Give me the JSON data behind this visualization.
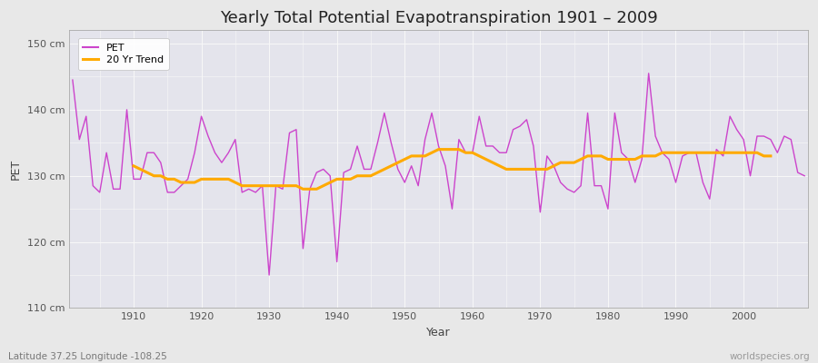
{
  "title": "Yearly Total Potential Evapotranspiration 1901 – 2009",
  "xlabel": "Year",
  "ylabel": "PET",
  "subtitle_left": "Latitude 37.25 Longitude -108.25",
  "subtitle_right": "worldspecies.org",
  "ylim": [
    110,
    152
  ],
  "yticks": [
    110,
    120,
    130,
    140,
    150
  ],
  "ytick_labels": [
    "110 cm",
    "120 cm",
    "130 cm",
    "140 cm",
    "150 cm"
  ],
  "xlim": [
    1900.5,
    2009.5
  ],
  "xticks": [
    1910,
    1920,
    1930,
    1940,
    1950,
    1960,
    1970,
    1980,
    1990,
    2000
  ],
  "pet_color": "#cc44cc",
  "trend_color": "#ffaa00",
  "fig_bg_color": "#e8e8e8",
  "plot_bg_color": "#e4e4ec",
  "grid_color": "#f8f8f8",
  "title_fontsize": 13,
  "axis_label_fontsize": 9,
  "tick_fontsize": 8,
  "legend_fontsize": 8,
  "years": [
    1901,
    1902,
    1903,
    1904,
    1905,
    1906,
    1907,
    1908,
    1909,
    1910,
    1911,
    1912,
    1913,
    1914,
    1915,
    1916,
    1917,
    1918,
    1919,
    1920,
    1921,
    1922,
    1923,
    1924,
    1925,
    1926,
    1927,
    1928,
    1929,
    1930,
    1931,
    1932,
    1933,
    1934,
    1935,
    1936,
    1937,
    1938,
    1939,
    1940,
    1941,
    1942,
    1943,
    1944,
    1945,
    1946,
    1947,
    1948,
    1949,
    1950,
    1951,
    1952,
    1953,
    1954,
    1955,
    1956,
    1957,
    1958,
    1959,
    1960,
    1961,
    1962,
    1963,
    1964,
    1965,
    1966,
    1967,
    1968,
    1969,
    1970,
    1971,
    1972,
    1973,
    1974,
    1975,
    1976,
    1977,
    1978,
    1979,
    1980,
    1981,
    1982,
    1983,
    1984,
    1985,
    1986,
    1987,
    1988,
    1989,
    1990,
    1991,
    1992,
    1993,
    1994,
    1995,
    1996,
    1997,
    1998,
    1999,
    2000,
    2001,
    2002,
    2003,
    2004,
    2005,
    2006,
    2007,
    2008,
    2009
  ],
  "pet_values": [
    144.5,
    135.5,
    139.0,
    128.5,
    127.5,
    133.5,
    128.0,
    128.0,
    140.0,
    129.5,
    129.5,
    133.5,
    133.5,
    132.0,
    127.5,
    127.5,
    128.5,
    129.5,
    133.5,
    139.0,
    136.0,
    133.5,
    132.0,
    133.5,
    135.5,
    127.5,
    128.0,
    127.5,
    128.5,
    115.0,
    128.5,
    128.0,
    136.5,
    137.0,
    119.0,
    128.0,
    130.5,
    131.0,
    130.0,
    117.0,
    130.5,
    131.0,
    134.5,
    131.0,
    131.0,
    135.0,
    139.5,
    135.0,
    131.0,
    129.0,
    131.5,
    128.5,
    135.5,
    139.5,
    134.5,
    131.5,
    125.0,
    135.5,
    133.5,
    133.5,
    139.0,
    134.5,
    134.5,
    133.5,
    133.5,
    137.0,
    137.5,
    138.5,
    134.5,
    124.5,
    133.0,
    131.5,
    129.0,
    128.0,
    127.5,
    128.5,
    139.5,
    128.5,
    128.5,
    125.0,
    139.5,
    133.5,
    132.5,
    129.0,
    132.5,
    145.5,
    136.0,
    133.5,
    132.5,
    129.0,
    133.0,
    133.5,
    133.5,
    129.0,
    126.5,
    134.0,
    133.0,
    139.0,
    137.0,
    135.5,
    130.0,
    136.0,
    136.0,
    135.5,
    133.5,
    136.0,
    135.5,
    130.5,
    130.0
  ],
  "trend_values": [
    null,
    null,
    null,
    null,
    null,
    null,
    null,
    null,
    null,
    131.5,
    131.0,
    130.5,
    130.0,
    130.0,
    129.5,
    129.5,
    129.0,
    129.0,
    129.0,
    129.5,
    129.5,
    129.5,
    129.5,
    129.5,
    129.0,
    128.5,
    128.5,
    128.5,
    128.5,
    128.5,
    128.5,
    128.5,
    128.5,
    128.5,
    128.0,
    128.0,
    128.0,
    128.5,
    129.0,
    129.5,
    129.5,
    129.5,
    130.0,
    130.0,
    130.0,
    130.5,
    131.0,
    131.5,
    132.0,
    132.5,
    133.0,
    133.0,
    133.0,
    133.5,
    134.0,
    134.0,
    134.0,
    134.0,
    133.5,
    133.5,
    133.0,
    132.5,
    132.0,
    131.5,
    131.0,
    131.0,
    131.0,
    131.0,
    131.0,
    131.0,
    131.0,
    131.5,
    132.0,
    132.0,
    132.0,
    132.5,
    133.0,
    133.0,
    133.0,
    132.5,
    132.5,
    132.5,
    132.5,
    132.5,
    133.0,
    133.0,
    133.0,
    133.5,
    133.5,
    133.5,
    133.5,
    133.5,
    133.5,
    133.5,
    133.5,
    133.5,
    133.5,
    133.5,
    133.5,
    133.5,
    133.5,
    133.5,
    133.0,
    133.0
  ]
}
